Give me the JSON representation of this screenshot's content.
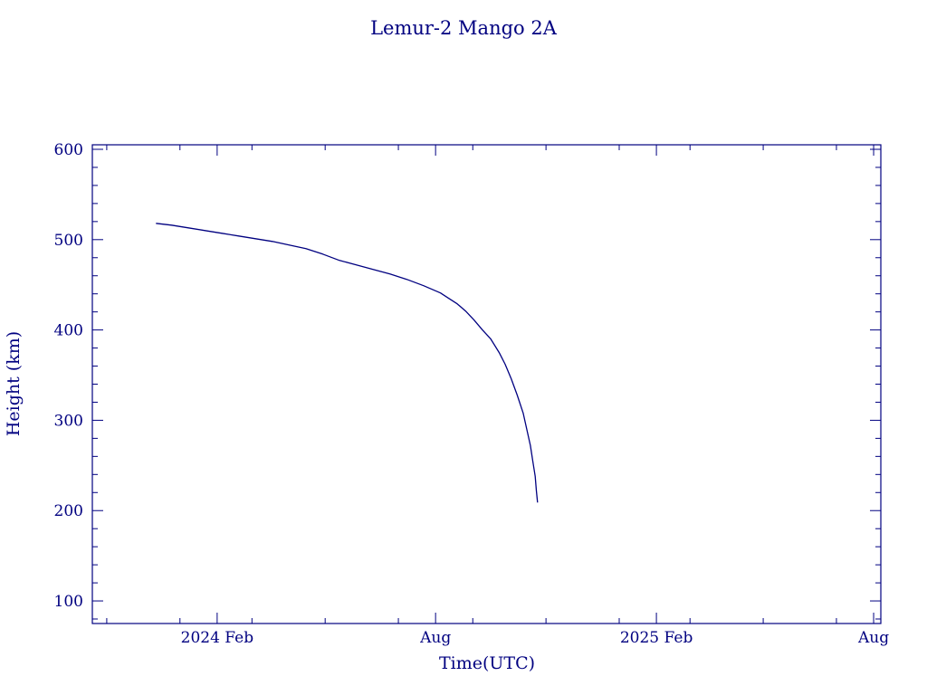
{
  "chart_data": {
    "type": "line",
    "title": "Lemur-2 Mango 2A",
    "xlabel": "Time(UTC)",
    "ylabel": "Height (km)",
    "x_tick_labels": [
      {
        "date": "2024-02-01",
        "label": "2024 Feb"
      },
      {
        "date": "2024-08-01",
        "label": "Aug"
      },
      {
        "date": "2025-02-01",
        "label": "2025 Feb"
      },
      {
        "date": "2025-08-01",
        "label": "Aug"
      }
    ],
    "xlim": [
      "2023-10-20",
      "2025-08-07"
    ],
    "ylim": [
      75,
      605
    ],
    "y_ticks": [
      100,
      200,
      300,
      400,
      500,
      600
    ],
    "grid": false,
    "color": "#000080",
    "series": [
      {
        "x": [
          "2023-12-12",
          "2023-12-25",
          "2024-01-08",
          "2024-01-22",
          "2024-02-05",
          "2024-02-19",
          "2024-03-04",
          "2024-03-18",
          "2024-04-01",
          "2024-04-15",
          "2024-04-29",
          "2024-05-13",
          "2024-05-27",
          "2024-06-10",
          "2024-06-24",
          "2024-07-08",
          "2024-07-22",
          "2024-08-05",
          "2024-08-12",
          "2024-08-19",
          "2024-08-26",
          "2024-09-02",
          "2024-09-09",
          "2024-09-16",
          "2024-09-23",
          "2024-09-28",
          "2024-10-03",
          "2024-10-08",
          "2024-10-13",
          "2024-10-16",
          "2024-10-19",
          "2024-10-21",
          "2024-10-23",
          "2024-10-24",
          "2024-10-25"
        ],
        "y": [
          518,
          516,
          513,
          510,
          507,
          504,
          501,
          498,
          494,
          490,
          484,
          477,
          472,
          467,
          462,
          456,
          449,
          441,
          435,
          429,
          421,
          411,
          400,
          390,
          375,
          362,
          346,
          328,
          308,
          290,
          272,
          255,
          238,
          222,
          209
        ]
      }
    ]
  }
}
